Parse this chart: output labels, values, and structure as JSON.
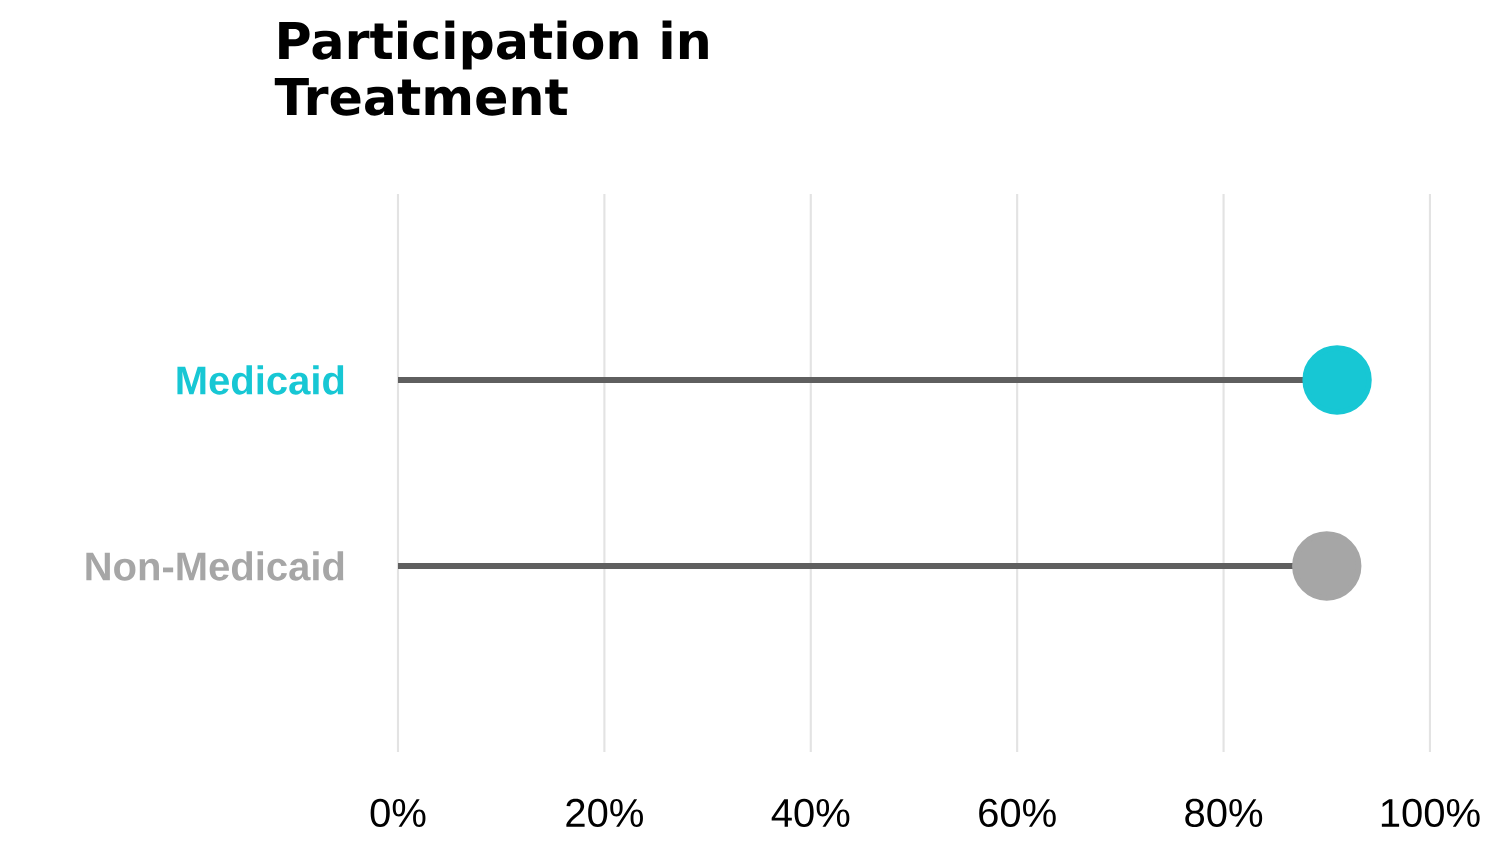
{
  "chart_data": {
    "type": "lollipop",
    "title": "Participation in Treatment",
    "orientation": "horizontal",
    "categories": [
      "Medicaid",
      "Non-Medicaid"
    ],
    "values": [
      91,
      90
    ],
    "colors": [
      "#17c7d4",
      "#a6a6a6"
    ],
    "xlim": [
      0,
      100
    ],
    "xticks": [
      {
        "value": 0,
        "label": "0%"
      },
      {
        "value": 20,
        "label": "20%"
      },
      {
        "value": 40,
        "label": "40%"
      },
      {
        "value": 60,
        "label": "60%"
      },
      {
        "value": 80,
        "label": "80%"
      },
      {
        "value": 100,
        "label": "100%"
      }
    ],
    "grid": "x",
    "marker": "circle"
  }
}
